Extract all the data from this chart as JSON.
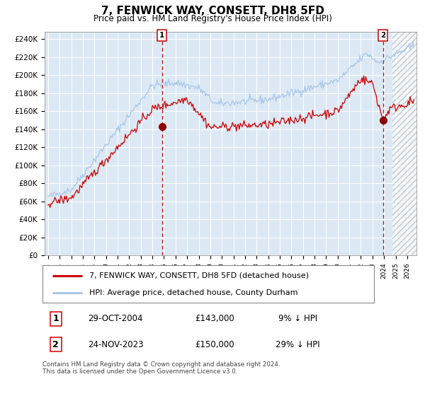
{
  "title": "7, FENWICK WAY, CONSETT, DH8 5FD",
  "subtitle": "Price paid vs. HM Land Registry's House Price Index (HPI)",
  "ylim": [
    0,
    240000
  ],
  "xlim_start": 1994.7,
  "xlim_end": 2026.8,
  "sale1_date": 2004.83,
  "sale1_price": 143000,
  "sale1_label": "1",
  "sale2_date": 2023.9,
  "sale2_price": 150000,
  "sale2_label": "2",
  "legend_line1": "7, FENWICK WAY, CONSETT, DH8 5FD (detached house)",
  "legend_line2": "HPI: Average price, detached house, County Durham",
  "table_row1": [
    "1",
    "29-OCT-2004",
    "£143,000",
    "9% ↓ HPI"
  ],
  "table_row2": [
    "2",
    "24-NOV-2023",
    "£150,000",
    "29% ↓ HPI"
  ],
  "footer": "Contains HM Land Registry data © Crown copyright and database right 2024.\nThis data is licensed under the Open Government Licence v3.0.",
  "hpi_color": "#a8c8e8",
  "price_color": "#cc0000",
  "plot_bg": "#dce9f5",
  "hatch_start": 2024.75
}
